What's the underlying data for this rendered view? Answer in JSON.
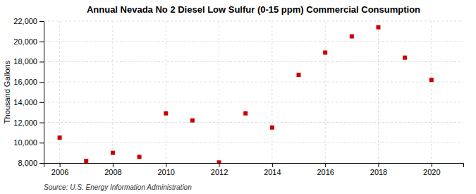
{
  "chart_data": {
    "type": "scatter",
    "title": "Annual Nevada No 2 Diesel Low Sulfur (0-15 ppm) Commercial Consumption",
    "y_label": "Thousand Gallons",
    "source": "Source: U.S. Energy Information Administration",
    "x": [
      2006,
      2007,
      2008,
      2009,
      2010,
      2011,
      2012,
      2013,
      2014,
      2015,
      2016,
      2017,
      2018,
      2019,
      2020
    ],
    "values": [
      10500,
      8200,
      9000,
      8600,
      12900,
      12200,
      8050,
      12900,
      11500,
      16700,
      18900,
      20500,
      21400,
      18400,
      16200
    ],
    "color": "#cc0000",
    "marker": "square",
    "xlim": [
      2005.4,
      2021.2
    ],
    "xticks": [
      2006,
      2008,
      2010,
      2012,
      2014,
      2016,
      2018,
      2020
    ],
    "ylim": [
      8000,
      22000
    ],
    "yticks": [
      {
        "value": 8000,
        "label": "8,000"
      },
      {
        "value": 10000,
        "label": "10,000"
      },
      {
        "value": 12000,
        "label": "12,000"
      },
      {
        "value": 14000,
        "label": "14,000"
      },
      {
        "value": 16000,
        "label": "16,000"
      },
      {
        "value": 18000,
        "label": "18,000"
      },
      {
        "value": 20000,
        "label": "20,000"
      },
      {
        "value": 22000,
        "label": "22,000"
      }
    ],
    "grid": true
  }
}
